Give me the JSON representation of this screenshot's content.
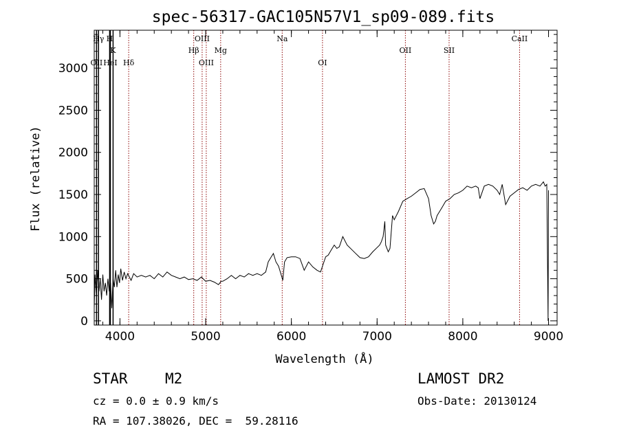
{
  "chart_data": {
    "type": "line",
    "title": "spec-56317-GAC105N57V1_sp09-089.fits",
    "xlabel": "Wavelength (Å)",
    "ylabel": "Flux (relative)",
    "xlim": [
      3700,
      9100
    ],
    "ylim": [
      -50,
      3450
    ],
    "x_ticks": [
      4000,
      5000,
      6000,
      7000,
      8000,
      9000
    ],
    "y_ticks": [
      0,
      500,
      1000,
      1500,
      2000,
      2500,
      3000
    ],
    "grid": false,
    "series": [
      {
        "x": [
          3700,
          3710,
          3725,
          3740,
          3755,
          3770,
          3785,
          3800,
          3815,
          3830,
          3845,
          3860,
          3875,
          3890,
          3905,
          3920,
          3935,
          3950,
          3965,
          3980,
          3995,
          4010,
          4030,
          4050,
          4070,
          4090,
          4110,
          4130,
          4160,
          4200,
          4250,
          4300,
          4350,
          4400,
          4450,
          4500,
          4550,
          4600,
          4650,
          4700,
          4750,
          4800,
          4850,
          4900,
          4950,
          5000,
          5050,
          5100,
          5150,
          5180,
          5200,
          5250,
          5300,
          5350,
          5400,
          5450,
          5500,
          5550,
          5600,
          5650,
          5700,
          5730,
          5760,
          5790,
          5820,
          5850,
          5880,
          5900,
          5920,
          5950,
          6000,
          6050,
          6100,
          6150,
          6200,
          6250,
          6300,
          6340,
          6380,
          6400,
          6430,
          6470,
          6500,
          6530,
          6560,
          6600,
          6650,
          6700,
          6750,
          6800,
          6850,
          6900,
          6950,
          7000,
          7030,
          7050,
          7070,
          7080,
          7090,
          7100,
          7130,
          7150,
          7180,
          7200,
          7250,
          7300,
          7350,
          7400,
          7450,
          7500,
          7550,
          7600,
          7630,
          7660,
          7680,
          7700,
          7730,
          7760,
          7800,
          7850,
          7900,
          7950,
          8000,
          8050,
          8100,
          8150,
          8180,
          8200,
          8250,
          8300,
          8350,
          8400,
          8430,
          8460,
          8500,
          8550,
          8600,
          8650,
          8700,
          8750,
          8800,
          8850,
          8900,
          8940,
          8960,
          8980,
          8995,
          9000
        ],
        "y": [
          150,
          550,
          300,
          600,
          350,
          500,
          250,
          550,
          350,
          450,
          300,
          500,
          350,
          450,
          150,
          500,
          400,
          600,
          400,
          550,
          450,
          620,
          480,
          580,
          500,
          560,
          520,
          480,
          560,
          520,
          540,
          520,
          540,
          500,
          560,
          520,
          580,
          540,
          520,
          500,
          520,
          490,
          500,
          480,
          520,
          470,
          480,
          460,
          430,
          470,
          470,
          500,
          540,
          500,
          540,
          520,
          560,
          540,
          560,
          540,
          580,
          700,
          750,
          800,
          700,
          650,
          550,
          480,
          700,
          750,
          760,
          760,
          740,
          600,
          700,
          640,
          600,
          580,
          700,
          760,
          780,
          850,
          900,
          860,
          880,
          1000,
          900,
          850,
          800,
          750,
          740,
          760,
          820,
          870,
          900,
          940,
          1000,
          1080,
          1180,
          900,
          820,
          860,
          1250,
          1200,
          1300,
          1420,
          1450,
          1480,
          1520,
          1560,
          1570,
          1450,
          1250,
          1150,
          1180,
          1250,
          1300,
          1350,
          1420,
          1450,
          1500,
          1520,
          1550,
          1600,
          1580,
          1600,
          1580,
          1450,
          1600,
          1620,
          1600,
          1550,
          1500,
          1620,
          1380,
          1480,
          1520,
          1560,
          1580,
          1550,
          1600,
          1620,
          1600,
          1650,
          1600,
          1620,
          0,
          1550
        ]
      }
    ],
    "lines": [
      {
        "label": "Hγ",
        "x": 3750,
        "color": "#000000",
        "row": 0
      },
      {
        "label": "H",
        "x": 3880,
        "color": "#000000",
        "row": 0
      },
      {
        "label": "K",
        "x": 3920,
        "color": "#000000",
        "row": 1
      },
      {
        "label": "OII",
        "x": 3727,
        "color": "#000000",
        "row": 2
      },
      {
        "label": "HeI",
        "x": 3888,
        "color": "#000000",
        "row": 2
      },
      {
        "label": "Hδ",
        "x": 4102,
        "color": "#8b0000",
        "row": 2
      },
      {
        "label": "OIII",
        "x": 4959,
        "color": "#8b0000",
        "row": 0
      },
      {
        "label": "Hβ",
        "x": 4861,
        "color": "#8b0000",
        "row": 1
      },
      {
        "label": "Mg",
        "x": 5175,
        "color": "#8b0000",
        "row": 1
      },
      {
        "label": "OIII",
        "x": 5007,
        "color": "#8b0000",
        "row": 2
      },
      {
        "label": "Na",
        "x": 5893,
        "color": "#8b0000",
        "row": 0
      },
      {
        "label": "OI",
        "x": 6363,
        "color": "#8b0000",
        "row": 2
      },
      {
        "label": "OII",
        "x": 7330,
        "color": "#8b0000",
        "row": 1
      },
      {
        "label": "SII",
        "x": 7840,
        "color": "#8b0000",
        "row": 1
      },
      {
        "label": "CaII",
        "x": 8662,
        "color": "#8b0000",
        "row": 0
      }
    ]
  },
  "info": {
    "class": "STAR",
    "subclass": "M2",
    "survey": "LAMOST DR2",
    "cz": "cz = 0.0 ± 0.9 km/s",
    "obs_date": "Obs-Date: 20130124",
    "radec": "RA = 107.38026, DEC =  59.28116"
  }
}
